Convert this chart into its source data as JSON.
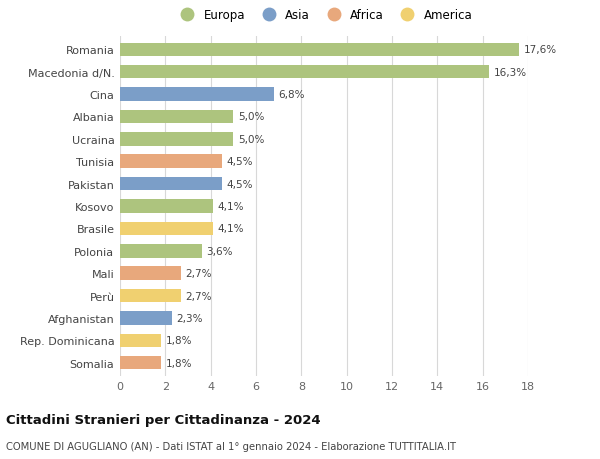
{
  "countries": [
    "Romania",
    "Macedonia d/N.",
    "Cina",
    "Albania",
    "Ucraina",
    "Tunisia",
    "Pakistan",
    "Kosovo",
    "Brasile",
    "Polonia",
    "Mali",
    "Perù",
    "Afghanistan",
    "Rep. Dominicana",
    "Somalia"
  ],
  "values": [
    17.6,
    16.3,
    6.8,
    5.0,
    5.0,
    4.5,
    4.5,
    4.1,
    4.1,
    3.6,
    2.7,
    2.7,
    2.3,
    1.8,
    1.8
  ],
  "labels": [
    "17,6%",
    "16,3%",
    "6,8%",
    "5,0%",
    "5,0%",
    "4,5%",
    "4,5%",
    "4,1%",
    "4,1%",
    "3,6%",
    "2,7%",
    "2,7%",
    "2,3%",
    "1,8%",
    "1,8%"
  ],
  "continents": [
    "Europa",
    "Europa",
    "Asia",
    "Europa",
    "Europa",
    "Africa",
    "Asia",
    "Europa",
    "America",
    "Europa",
    "Africa",
    "America",
    "Asia",
    "America",
    "Africa"
  ],
  "colors": {
    "Europa": "#adc47e",
    "Asia": "#7b9ec8",
    "Africa": "#e8a87c",
    "America": "#f0d070"
  },
  "legend_order": [
    "Europa",
    "Asia",
    "Africa",
    "America"
  ],
  "xlim": [
    0,
    18
  ],
  "xticks": [
    0,
    2,
    4,
    6,
    8,
    10,
    12,
    14,
    16,
    18
  ],
  "title": "Cittadini Stranieri per Cittadinanza - 2024",
  "subtitle": "COMUNE DI AGUGLIANO (AN) - Dati ISTAT al 1° gennaio 2024 - Elaborazione TUTTITALIA.IT",
  "background_color": "#ffffff",
  "grid_color": "#d8d8d8",
  "bar_height": 0.6
}
